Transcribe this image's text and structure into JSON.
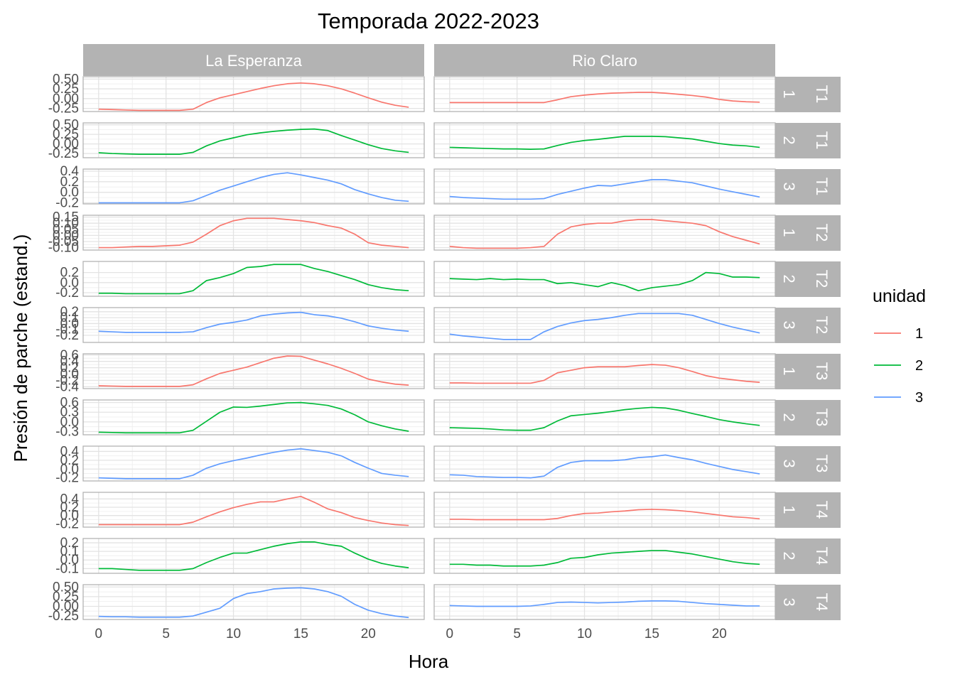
{
  "chart_data": {
    "type": "line",
    "title": "Temporada 2022-2023",
    "xlabel": "Hora",
    "ylabel": "Presión de parche (estand.)",
    "xlim": [
      -1.15,
      24.15
    ],
    "x_ticks": [
      0,
      5,
      10,
      15,
      20
    ],
    "x_tick_labels": [
      "0",
      "5",
      "10",
      "15",
      "20"
    ],
    "hours": [
      0,
      1,
      2,
      3,
      4,
      5,
      6,
      7,
      8,
      9,
      10,
      11,
      12,
      13,
      14,
      15,
      16,
      17,
      18,
      19,
      20,
      21,
      22,
      23
    ],
    "columns": [
      "La Esperanza",
      "Rio Claro"
    ],
    "legend": {
      "title": "unidad",
      "entries": [
        {
          "label": "1",
          "color": "#F8766D"
        },
        {
          "label": "2",
          "color": "#00BA38"
        },
        {
          "label": "3",
          "color": "#619CFF"
        }
      ]
    },
    "rows": [
      {
        "strip_unidad": "1",
        "strip_trat": "T1",
        "unidad": "1",
        "ylim": [
          -0.33,
          0.56
        ],
        "y_ticks": [
          -0.25,
          0.0,
          0.25,
          0.5
        ],
        "y_tick_labels": [
          "-0.25",
          "0.00",
          "0.25",
          "0.50"
        ],
        "values": [
          [
            -0.27,
            -0.28,
            -0.29,
            -0.3,
            -0.3,
            -0.3,
            -0.3,
            -0.27,
            -0.1,
            0.02,
            0.1,
            0.18,
            0.26,
            0.33,
            0.38,
            0.4,
            0.38,
            0.33,
            0.25,
            0.14,
            0.02,
            -0.09,
            -0.17,
            -0.22
          ],
          [
            -0.1,
            -0.1,
            -0.1,
            -0.1,
            -0.1,
            -0.1,
            -0.1,
            -0.1,
            -0.03,
            0.05,
            0.09,
            0.12,
            0.14,
            0.15,
            0.16,
            0.16,
            0.14,
            0.11,
            0.08,
            0.04,
            -0.02,
            -0.06,
            -0.08,
            -0.09
          ]
        ]
      },
      {
        "strip_unidad": "2",
        "strip_trat": "T1",
        "unidad": "2",
        "ylim": [
          -0.36,
          0.55
        ],
        "y_ticks": [
          -0.25,
          0.0,
          0.25,
          0.5
        ],
        "y_tick_labels": [
          "-0.25",
          "0.00",
          "0.25",
          "0.50"
        ],
        "values": [
          [
            -0.23,
            -0.25,
            -0.26,
            -0.27,
            -0.27,
            -0.27,
            -0.27,
            -0.22,
            -0.05,
            0.08,
            0.16,
            0.24,
            0.29,
            0.33,
            0.36,
            0.38,
            0.39,
            0.35,
            0.22,
            0.1,
            -0.02,
            -0.12,
            -0.18,
            -0.22
          ],
          [
            -0.09,
            -0.1,
            -0.11,
            -0.12,
            -0.13,
            -0.13,
            -0.14,
            -0.13,
            -0.04,
            0.04,
            0.09,
            0.12,
            0.16,
            0.2,
            0.2,
            0.2,
            0.19,
            0.16,
            0.13,
            0.07,
            0.01,
            -0.03,
            -0.05,
            -0.09
          ]
        ]
      },
      {
        "strip_unidad": "3",
        "strip_trat": "T1",
        "unidad": "3",
        "ylim": [
          -0.22,
          0.44
        ],
        "y_ticks": [
          -0.2,
          0.0,
          0.2,
          0.4
        ],
        "y_tick_labels": [
          "-0.2",
          "0.0",
          "0.2",
          "0.4"
        ],
        "values": [
          [
            -0.2,
            -0.2,
            -0.2,
            -0.2,
            -0.2,
            -0.2,
            -0.2,
            -0.16,
            -0.06,
            0.04,
            0.12,
            0.2,
            0.28,
            0.34,
            0.37,
            0.33,
            0.28,
            0.23,
            0.16,
            0.05,
            -0.03,
            -0.1,
            -0.15,
            -0.17
          ],
          [
            -0.08,
            -0.1,
            -0.11,
            -0.12,
            -0.13,
            -0.13,
            -0.13,
            -0.12,
            -0.04,
            0.02,
            0.08,
            0.13,
            0.12,
            0.16,
            0.2,
            0.24,
            0.24,
            0.21,
            0.18,
            0.12,
            0.06,
            0.01,
            -0.04,
            -0.09
          ]
        ]
      },
      {
        "strip_unidad": "1",
        "strip_trat": "T2",
        "unidad": "1",
        "ylim": [
          -0.12,
          0.165
        ],
        "y_ticks": [
          -0.1,
          -0.05,
          0.0,
          0.05,
          0.1,
          0.15
        ],
        "y_tick_labels": [
          "-0.10",
          "-0.05",
          "0.00",
          "0.05",
          "0.10",
          "0.15"
        ],
        "values": [
          [
            -0.1,
            -0.1,
            -0.095,
            -0.09,
            -0.09,
            -0.085,
            -0.08,
            -0.055,
            0.01,
            0.08,
            0.12,
            0.14,
            0.14,
            0.14,
            0.13,
            0.12,
            0.105,
            0.08,
            0.06,
            0.01,
            -0.06,
            -0.08,
            -0.09,
            -0.1
          ],
          [
            -0.09,
            -0.1,
            -0.105,
            -0.105,
            -0.105,
            -0.105,
            -0.1,
            -0.09,
            0.01,
            0.07,
            0.09,
            0.1,
            0.1,
            0.12,
            0.13,
            0.13,
            0.12,
            0.11,
            0.1,
            0.08,
            0.03,
            -0.01,
            -0.04,
            -0.07
          ]
        ]
      },
      {
        "strip_unidad": "2",
        "strip_trat": "T2",
        "unidad": "2",
        "ylim": [
          -0.27,
          0.42
        ],
        "y_ticks": [
          -0.2,
          0.0,
          0.2
        ],
        "y_tick_labels": [
          "-0.2",
          "0.0",
          "0.2"
        ],
        "values": [
          [
            -0.21,
            -0.21,
            -0.22,
            -0.22,
            -0.22,
            -0.22,
            -0.22,
            -0.16,
            0.04,
            0.1,
            0.18,
            0.3,
            0.32,
            0.36,
            0.36,
            0.36,
            0.28,
            0.22,
            0.14,
            0.06,
            -0.04,
            -0.1,
            -0.14,
            -0.16
          ],
          [
            0.08,
            0.07,
            0.06,
            0.08,
            0.06,
            0.07,
            0.06,
            0.06,
            -0.02,
            0.0,
            -0.04,
            -0.08,
            0.0,
            -0.06,
            -0.16,
            -0.1,
            -0.07,
            -0.04,
            0.04,
            0.2,
            0.18,
            0.11,
            0.11,
            0.1
          ]
        ]
      },
      {
        "strip_unidad": "3",
        "strip_trat": "T2",
        "unidad": "3",
        "ylim": [
          -0.32,
          0.27
        ],
        "y_ticks": [
          -0.2,
          -0.1,
          0.0,
          0.1,
          0.2
        ],
        "y_tick_labels": [
          "-0.2",
          "-0.1",
          "0.0",
          "0.1",
          "0.2"
        ],
        "values": [
          [
            -0.13,
            -0.14,
            -0.15,
            -0.15,
            -0.15,
            -0.15,
            -0.15,
            -0.14,
            -0.07,
            -0.01,
            0.02,
            0.06,
            0.13,
            0.16,
            0.18,
            0.19,
            0.15,
            0.13,
            0.09,
            0.03,
            -0.04,
            -0.08,
            -0.11,
            -0.13
          ],
          [
            -0.18,
            -0.21,
            -0.23,
            -0.25,
            -0.27,
            -0.27,
            -0.27,
            -0.14,
            -0.05,
            0.01,
            0.05,
            0.07,
            0.1,
            0.14,
            0.17,
            0.17,
            0.17,
            0.17,
            0.14,
            0.07,
            0.0,
            -0.06,
            -0.11,
            -0.16
          ]
        ]
      },
      {
        "strip_unidad": "1",
        "strip_trat": "T3",
        "unidad": "1",
        "ylim": [
          -0.46,
          0.64
        ],
        "y_ticks": [
          -0.4,
          -0.2,
          0.0,
          0.2,
          0.4,
          0.6
        ],
        "y_tick_labels": [
          "-0.4",
          "-0.2",
          "0.0",
          "0.2",
          "0.4",
          "0.6"
        ],
        "values": [
          [
            -0.37,
            -0.38,
            -0.39,
            -0.39,
            -0.39,
            -0.39,
            -0.39,
            -0.34,
            -0.15,
            0.02,
            0.12,
            0.22,
            0.36,
            0.5,
            0.57,
            0.56,
            0.44,
            0.32,
            0.18,
            0.02,
            -0.16,
            -0.25,
            -0.32,
            -0.35
          ],
          [
            -0.28,
            -0.28,
            -0.29,
            -0.29,
            -0.29,
            -0.29,
            -0.29,
            -0.2,
            0.04,
            0.12,
            0.2,
            0.23,
            0.23,
            0.23,
            0.27,
            0.3,
            0.28,
            0.2,
            0.08,
            -0.05,
            -0.13,
            -0.18,
            -0.23,
            -0.26
          ]
        ]
      },
      {
        "strip_unidad": "2",
        "strip_trat": "T3",
        "unidad": "2",
        "ylim": [
          -0.4,
          0.68
        ],
        "y_ticks": [
          -0.3,
          0.0,
          0.3,
          0.6
        ],
        "y_tick_labels": [
          "-0.3",
          "0.0",
          "0.3",
          "0.6"
        ],
        "values": [
          [
            -0.32,
            -0.33,
            -0.34,
            -0.34,
            -0.34,
            -0.34,
            -0.34,
            -0.26,
            0.02,
            0.3,
            0.46,
            0.45,
            0.49,
            0.54,
            0.59,
            0.6,
            0.56,
            0.51,
            0.4,
            0.22,
            0.0,
            -0.12,
            -0.22,
            -0.29
          ],
          [
            -0.18,
            -0.19,
            -0.2,
            -0.22,
            -0.25,
            -0.26,
            -0.26,
            -0.18,
            0.03,
            0.19,
            0.23,
            0.27,
            0.32,
            0.38,
            0.42,
            0.45,
            0.43,
            0.36,
            0.26,
            0.17,
            0.07,
            0.0,
            -0.06,
            -0.11
          ]
        ]
      },
      {
        "strip_unidad": "3",
        "strip_trat": "T3",
        "unidad": "3",
        "ylim": [
          -0.27,
          0.52
        ],
        "y_ticks": [
          -0.2,
          0.0,
          0.2,
          0.4
        ],
        "y_tick_labels": [
          "-0.2",
          "0.0",
          "0.2",
          "0.4"
        ],
        "values": [
          [
            -0.2,
            -0.21,
            -0.22,
            -0.22,
            -0.22,
            -0.22,
            -0.22,
            -0.14,
            0.02,
            0.12,
            0.19,
            0.25,
            0.32,
            0.38,
            0.43,
            0.46,
            0.42,
            0.38,
            0.3,
            0.15,
            0.02,
            -0.1,
            -0.14,
            -0.17
          ],
          [
            -0.13,
            -0.14,
            -0.17,
            -0.18,
            -0.19,
            -0.19,
            -0.2,
            -0.16,
            0.04,
            0.15,
            0.19,
            0.19,
            0.19,
            0.21,
            0.26,
            0.28,
            0.32,
            0.26,
            0.21,
            0.13,
            0.06,
            -0.01,
            -0.06,
            -0.11
          ]
        ]
      },
      {
        "strip_unidad": "1",
        "strip_trat": "T4",
        "unidad": "1",
        "ylim": [
          -0.28,
          0.56
        ],
        "y_ticks": [
          -0.2,
          0.0,
          0.2,
          0.4
        ],
        "y_tick_labels": [
          "-0.2",
          "0.0",
          "0.2",
          "0.4"
        ],
        "values": [
          [
            -0.22,
            -0.22,
            -0.22,
            -0.22,
            -0.22,
            -0.22,
            -0.22,
            -0.16,
            -0.03,
            0.09,
            0.19,
            0.27,
            0.33,
            0.33,
            0.4,
            0.46,
            0.32,
            0.16,
            0.07,
            -0.05,
            -0.12,
            -0.18,
            -0.22,
            -0.24
          ],
          [
            -0.09,
            -0.09,
            -0.1,
            -0.1,
            -0.1,
            -0.1,
            -0.1,
            -0.1,
            -0.07,
            0.0,
            0.05,
            0.06,
            0.09,
            0.11,
            0.14,
            0.15,
            0.14,
            0.12,
            0.09,
            0.05,
            0.01,
            -0.03,
            -0.05,
            -0.08
          ]
        ]
      },
      {
        "strip_unidad": "2",
        "strip_trat": "T4",
        "unidad": "2",
        "ylim": [
          -0.155,
          0.25
        ],
        "y_ticks": [
          -0.1,
          0.0,
          0.1,
          0.2
        ],
        "y_tick_labels": [
          "-0.1",
          "0.0",
          "0.1",
          "0.2"
        ],
        "values": [
          [
            -0.1,
            -0.1,
            -0.11,
            -0.12,
            -0.12,
            -0.12,
            -0.12,
            -0.1,
            -0.03,
            0.03,
            0.08,
            0.08,
            0.12,
            0.16,
            0.19,
            0.21,
            0.21,
            0.18,
            0.16,
            0.08,
            0.01,
            -0.04,
            -0.07,
            -0.09
          ],
          [
            -0.05,
            -0.05,
            -0.06,
            -0.06,
            -0.07,
            -0.07,
            -0.07,
            -0.06,
            -0.03,
            0.02,
            0.03,
            0.06,
            0.08,
            0.09,
            0.1,
            0.11,
            0.11,
            0.09,
            0.07,
            0.04,
            0.01,
            -0.02,
            -0.04,
            -0.05
          ]
        ]
      },
      {
        "strip_unidad": "3",
        "strip_trat": "T4",
        "unidad": "3",
        "ylim": [
          -0.34,
          0.56
        ],
        "y_ticks": [
          -0.25,
          0.0,
          0.25,
          0.5
        ],
        "y_tick_labels": [
          "-0.25",
          "0.00",
          "0.25",
          "0.50"
        ],
        "values": [
          [
            -0.26,
            -0.27,
            -0.27,
            -0.28,
            -0.28,
            -0.28,
            -0.28,
            -0.25,
            -0.15,
            -0.05,
            0.2,
            0.33,
            0.38,
            0.45,
            0.47,
            0.48,
            0.45,
            0.38,
            0.26,
            0.05,
            -0.1,
            -0.19,
            -0.25,
            -0.29
          ],
          [
            0.02,
            0.01,
            0.0,
            0.0,
            0.0,
            0.0,
            0.01,
            0.05,
            0.1,
            0.11,
            0.1,
            0.09,
            0.1,
            0.11,
            0.13,
            0.14,
            0.14,
            0.13,
            0.1,
            0.07,
            0.05,
            0.03,
            0.01,
            0.01
          ]
        ]
      }
    ]
  }
}
